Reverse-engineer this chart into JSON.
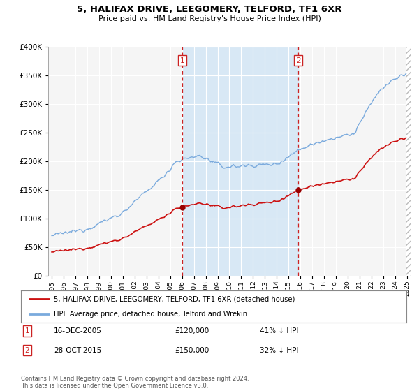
{
  "title": "5, HALIFAX DRIVE, LEEGOMERY, TELFORD, TF1 6XR",
  "subtitle": "Price paid vs. HM Land Registry's House Price Index (HPI)",
  "legend_line1": "5, HALIFAX DRIVE, LEEGOMERY, TELFORD, TF1 6XR (detached house)",
  "legend_line2": "HPI: Average price, detached house, Telford and Wrekin",
  "footnote": "Contains HM Land Registry data © Crown copyright and database right 2024.\nThis data is licensed under the Open Government Licence v3.0.",
  "sale1_date": "16-DEC-2005",
  "sale1_price": "£120,000",
  "sale1_pct": "41% ↓ HPI",
  "sale2_date": "28-OCT-2015",
  "sale2_price": "£150,000",
  "sale2_pct": "32% ↓ HPI",
  "sale1_x": 2006.0,
  "sale1_y": 120000,
  "sale2_x": 2015.83,
  "sale2_y": 150000,
  "red_color": "#cc1111",
  "blue_color": "#7aaadd",
  "shade_color": "#d8e8f5",
  "plot_bg_color": "#f5f5f5",
  "ylim": [
    0,
    400000
  ],
  "xlim": [
    1994.7,
    2025.3
  ],
  "sale_marker_color": "#990000",
  "vline_color": "#cc2222",
  "label_box_color": "#cc2222",
  "hatch_color": "#bbbbbb"
}
